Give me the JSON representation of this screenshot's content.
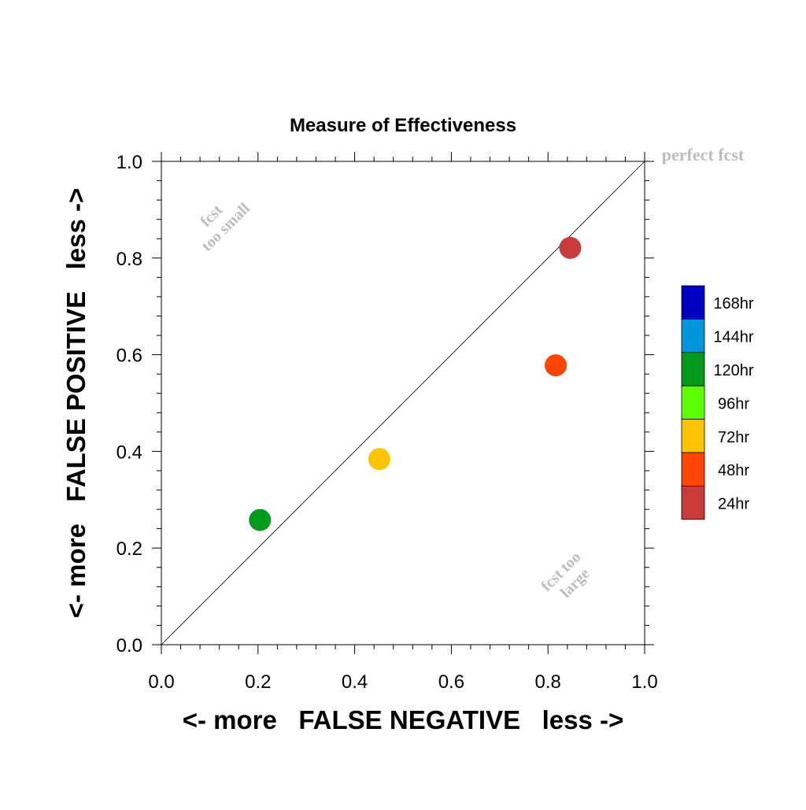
{
  "chart_data": {
    "type": "scatter",
    "title": "Measure of Effectiveness",
    "xlabel": "<- more   FALSE NEGATIVE   less ->",
    "ylabel": "<- more   FALSE POSITIVE   less ->",
    "xlim": [
      0.0,
      1.0
    ],
    "ylim": [
      0.0,
      1.0
    ],
    "x_ticks": [
      "0.0",
      "0.2",
      "0.4",
      "0.6",
      "0.8",
      "1.0"
    ],
    "y_ticks": [
      "0.0",
      "0.2",
      "0.4",
      "0.6",
      "0.8",
      "1.0"
    ],
    "grid": false,
    "reference_line": {
      "label": "perfect fcst",
      "from": [
        0,
        0
      ],
      "to": [
        1,
        1
      ]
    },
    "annotations": {
      "upper_left": [
        "fcst",
        "too small"
      ],
      "lower_right": [
        "fcst too",
        "large"
      ]
    },
    "legend_position": "right",
    "legend": [
      {
        "label": "168hr",
        "color": "#0000c4"
      },
      {
        "label": "144hr",
        "color": "#0096dc"
      },
      {
        "label": "120hr",
        "color": "#009a1c"
      },
      {
        "label": "96hr",
        "color": "#5cff00"
      },
      {
        "label": "72hr",
        "color": "#ffc400"
      },
      {
        "label": "48hr",
        "color": "#ff4600"
      },
      {
        "label": "24hr",
        "color": "#c83c3c"
      }
    ],
    "points": [
      {
        "lead": "24hr",
        "x": 0.846,
        "y": 0.821,
        "color": "#c83c3c"
      },
      {
        "lead": "48hr",
        "x": 0.816,
        "y": 0.578,
        "color": "#ff4600"
      },
      {
        "lead": "72hr",
        "x": 0.451,
        "y": 0.384,
        "color": "#ffc400"
      },
      {
        "lead": "120hr",
        "x": 0.204,
        "y": 0.258,
        "color": "#009a1c"
      }
    ]
  }
}
